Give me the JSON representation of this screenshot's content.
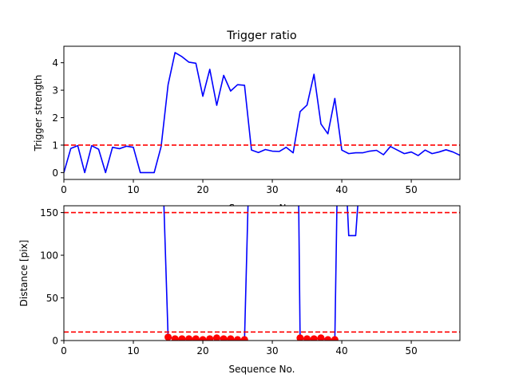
{
  "chart_data": [
    {
      "type": "line",
      "title": "Trigger ratio",
      "xlabel": "Sequence No.",
      "ylabel": "Trigger strength",
      "xlim": [
        0,
        57
      ],
      "ylim": [
        -0.25,
        4.6
      ],
      "xticks": [
        0,
        10,
        20,
        30,
        40,
        50
      ],
      "yticks": [
        0,
        1,
        2,
        3,
        4
      ],
      "grid": false,
      "series": [
        {
          "color": "#0000ff",
          "style": "solid",
          "x": [
            0,
            1,
            2,
            3,
            4,
            5,
            6,
            7,
            8,
            9,
            10,
            11,
            12,
            13,
            14,
            15,
            16,
            17,
            18,
            19,
            20,
            21,
            22,
            23,
            24,
            25,
            26,
            27,
            28,
            29,
            30,
            31,
            32,
            33,
            34,
            35,
            36,
            37,
            38,
            39,
            40,
            41,
            42,
            43,
            44,
            45,
            46,
            47,
            48,
            49,
            50,
            51,
            52,
            53,
            54,
            55,
            56,
            57
          ],
          "y": [
            0.0,
            0.88,
            0.98,
            0.0,
            0.98,
            0.85,
            0.0,
            0.92,
            0.87,
            0.96,
            0.92,
            0.0,
            0.0,
            0.0,
            0.95,
            3.2,
            4.37,
            4.22,
            4.02,
            3.98,
            2.78,
            3.76,
            2.45,
            3.54,
            2.97,
            3.2,
            3.18,
            0.82,
            0.73,
            0.84,
            0.78,
            0.77,
            0.92,
            0.72,
            2.22,
            2.46,
            3.58,
            1.77,
            1.41,
            2.7,
            0.82,
            0.69,
            0.72,
            0.72,
            0.78,
            0.81,
            0.65,
            0.95,
            0.82,
            0.69,
            0.75,
            0.62,
            0.82,
            0.69,
            0.75,
            0.83,
            0.75,
            0.63
          ]
        }
      ],
      "reference_lines": [
        {
          "y": 1.0,
          "color": "#ff0000",
          "style": "dashed"
        }
      ]
    },
    {
      "type": "line",
      "title": "",
      "xlabel": "Sequence No.",
      "ylabel": "Distance [pix]",
      "xlim": [
        0,
        57
      ],
      "ylim": [
        0,
        158
      ],
      "xticks": [
        0,
        10,
        20,
        30,
        40,
        50
      ],
      "yticks": [
        0,
        50,
        100,
        150
      ],
      "grid": false,
      "series": [
        {
          "color": "#0000ff",
          "style": "solid",
          "x": [
            14.4,
            15,
            16,
            17,
            18,
            19,
            20,
            21,
            22,
            23,
            24,
            25,
            26,
            26.5
          ],
          "y": [
            158,
            4,
            2,
            2,
            2,
            2,
            1,
            2,
            3,
            2,
            2,
            1,
            1,
            158
          ]
        },
        {
          "color": "#0000ff",
          "style": "solid",
          "x": [
            33.8,
            34,
            35,
            36,
            37,
            38,
            39,
            39.3
          ],
          "y": [
            158,
            3,
            2,
            2,
            3,
            1,
            1,
            158
          ]
        },
        {
          "color": "#0000ff",
          "style": "solid",
          "x": [
            40.8,
            41,
            42,
            42.3
          ],
          "y": [
            158,
            123,
            123,
            158
          ]
        },
        {
          "color": "#ff0000",
          "style": "markers",
          "x": [
            15,
            16,
            17,
            18,
            19,
            20,
            21,
            22,
            23,
            24,
            25,
            26,
            34,
            35,
            36,
            37,
            38,
            39
          ],
          "y": [
            4,
            2,
            2,
            2,
            2,
            1,
            2,
            3,
            2,
            2,
            1,
            1,
            3,
            2,
            2,
            3,
            1,
            1
          ]
        }
      ],
      "reference_lines": [
        {
          "y": 150,
          "color": "#ff0000",
          "style": "dashed"
        },
        {
          "y": 10,
          "color": "#ff0000",
          "style": "dashed"
        }
      ]
    }
  ]
}
